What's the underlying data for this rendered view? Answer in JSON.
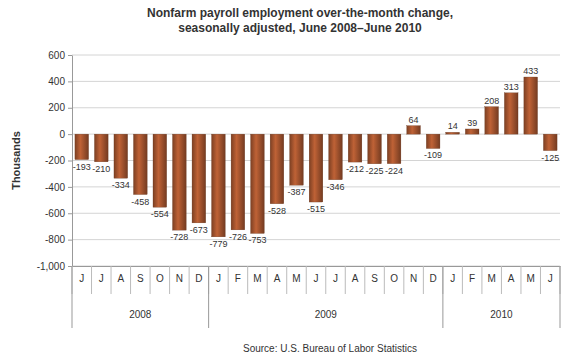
{
  "chart_data": {
    "type": "bar",
    "title": "Nonfarm payroll employment over-the-month change,",
    "subtitle": "seasonally adjusted, June 2008–June 2010",
    "y_label": "Thousands",
    "source": "Source: U.S. Bureau of Labor Statistics",
    "categories": [
      "J",
      "J",
      "A",
      "S",
      "O",
      "N",
      "D",
      "J",
      "F",
      "M",
      "A",
      "M",
      "J",
      "J",
      "A",
      "S",
      "O",
      "N",
      "D",
      "J",
      "F",
      "M",
      "A",
      "M",
      "J"
    ],
    "values": [
      -193,
      -210,
      -334,
      -458,
      -554,
      -728,
      -673,
      -779,
      -726,
      -753,
      -528,
      -387,
      -515,
      -346,
      -212,
      -225,
      -224,
      64,
      -109,
      14,
      39,
      208,
      313,
      433,
      -125
    ],
    "color": "#a0522d",
    "ylim": [
      -1000,
      600
    ],
    "yticks": [
      {
        "value": -1000,
        "label": "-1,000"
      },
      -800,
      -600,
      -400,
      -200,
      0,
      200,
      400,
      600
    ],
    "grid": true,
    "data_labels": true,
    "groups": [
      {
        "label": "2008",
        "count": 7
      },
      {
        "label": "2009",
        "count": 12
      },
      {
        "label": "2010",
        "count": 6
      }
    ]
  }
}
